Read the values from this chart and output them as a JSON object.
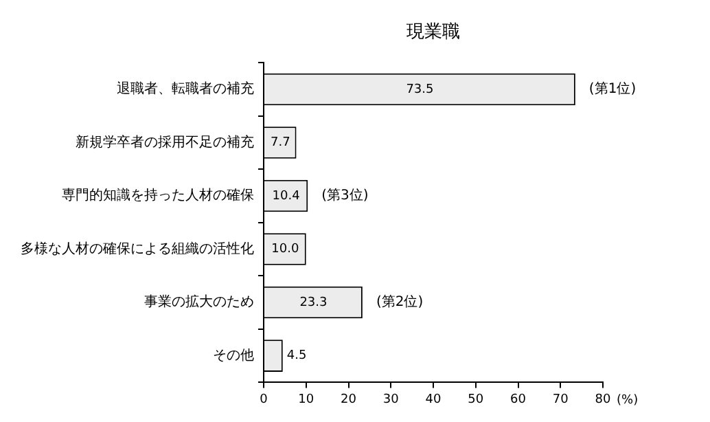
{
  "chart_data": {
    "type": "bar",
    "orientation": "horizontal",
    "title": "現業職",
    "xlabel": "(%)",
    "categories": [
      "退職者、転職者の補充",
      "新規学卒者の採用不足の補充",
      "専門的知識を持った人材の確保",
      "多様な人材の確保による組織の活性化",
      "事業の拡大のため",
      "その他"
    ],
    "values": [
      73.5,
      7.7,
      10.4,
      10.0,
      23.3,
      4.5
    ],
    "value_labels": [
      "73.5",
      "7.7",
      "10.4",
      "10.0",
      "23.3",
      "4.5"
    ],
    "color": "#ececec",
    "xlim": [
      0,
      80
    ],
    "xticks": [
      0,
      10,
      20,
      30,
      40,
      50,
      60,
      70,
      80
    ],
    "grid": false,
    "legend": false,
    "annotations": [
      {
        "text": "(第1位)",
        "x": 73.5,
        "y": "退職者、転職者の補充"
      },
      {
        "text": "(第3位)",
        "x": 10.4,
        "y": "専門的知識を持った人材の確保"
      },
      {
        "text": "(第2位)",
        "x": 23.3,
        "y": "事業の拡大のため"
      }
    ]
  }
}
